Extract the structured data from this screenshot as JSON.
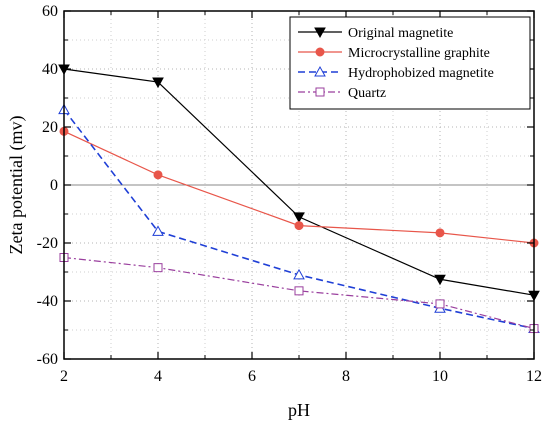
{
  "chart_data": {
    "type": "line",
    "xlabel": "pH",
    "ylabel": "Zeta potential (mv)",
    "xlim": [
      2,
      12
    ],
    "ylim": [
      -60,
      60
    ],
    "xticks": [
      2,
      4,
      6,
      8,
      10,
      12
    ],
    "yticks": [
      -60,
      -40,
      -20,
      0,
      20,
      40,
      60
    ],
    "grid": true,
    "zero_line": true,
    "legend_position": "top-right",
    "series": [
      {
        "name": "Original magnetite",
        "color": "#000000",
        "marker": "triangle-down-filled",
        "line_style": "solid",
        "x": [
          2,
          4,
          7,
          10,
          12
        ],
        "y": [
          40,
          35.5,
          -11,
          -32.5,
          -38
        ]
      },
      {
        "name": "Microcrystalline graphite",
        "color": "#e8564a",
        "marker": "circle-filled",
        "line_style": "solid",
        "x": [
          2,
          4,
          7,
          10,
          12
        ],
        "y": [
          18.5,
          3.5,
          -14,
          -16.5,
          -20
        ]
      },
      {
        "name": "Hydrophobized  magnetite",
        "color": "#1f3fd6",
        "marker": "triangle-up-open",
        "line_style": "dashed",
        "x": [
          2,
          4,
          7,
          10,
          12
        ],
        "y": [
          26,
          -16,
          -31,
          -42.5,
          -49.5
        ]
      },
      {
        "name": "Quartz",
        "color": "#9a3f9e",
        "marker": "square-open",
        "line_style": "dash-dot",
        "x": [
          2,
          4,
          7,
          10,
          12
        ],
        "y": [
          -25,
          -28.5,
          -36.5,
          -41,
          -49.5
        ]
      }
    ]
  }
}
